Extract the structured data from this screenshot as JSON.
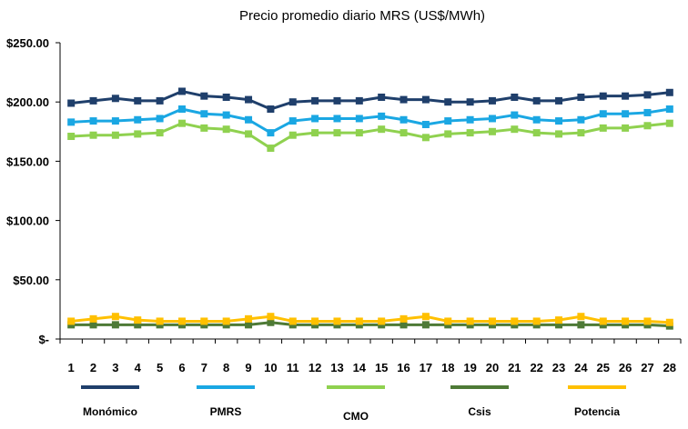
{
  "chart_data": {
    "type": "line",
    "title": "Precio promedio diario MRS (US$/MWh)",
    "xlabel": "",
    "ylabel": "",
    "x": [
      1,
      2,
      3,
      4,
      5,
      6,
      7,
      8,
      9,
      10,
      11,
      12,
      13,
      14,
      15,
      16,
      17,
      18,
      19,
      20,
      21,
      22,
      23,
      24,
      25,
      26,
      27,
      28
    ],
    "ylim": [
      0,
      250
    ],
    "yticks": [
      {
        "value": 0,
        "label": "$-"
      },
      {
        "value": 50,
        "label": "$50.00"
      },
      {
        "value": 100,
        "label": "$100.00"
      },
      {
        "value": 150,
        "label": "$150.00"
      },
      {
        "value": 200,
        "label": "$200.00"
      },
      {
        "value": 250,
        "label": "$250.00"
      }
    ],
    "grid": false,
    "legend_position": "bottom",
    "series": [
      {
        "name": "Monómico",
        "color": "#1F3F6B",
        "values": [
          199,
          201,
          203,
          201,
          201,
          209,
          205,
          204,
          202,
          194,
          200,
          201,
          201,
          201,
          204,
          202,
          202,
          200,
          200,
          201,
          204,
          201,
          201,
          204,
          205,
          205,
          206,
          208
        ]
      },
      {
        "name": "PMRS",
        "color": "#1AA7E3",
        "values": [
          183,
          184,
          184,
          185,
          186,
          194,
          190,
          189,
          185,
          174,
          184,
          186,
          186,
          186,
          188,
          185,
          181,
          184,
          185,
          186,
          189,
          185,
          184,
          185,
          190,
          190,
          191,
          194
        ]
      },
      {
        "name": "CMO",
        "color": "#8FD14F",
        "values": [
          171,
          172,
          172,
          173,
          174,
          182,
          178,
          177,
          173,
          161,
          172,
          174,
          174,
          174,
          177,
          174,
          170,
          173,
          174,
          175,
          177,
          174,
          173,
          174,
          178,
          178,
          180,
          182
        ]
      },
      {
        "name": "Csis",
        "color": "#4E7A36",
        "values": [
          12,
          12,
          12,
          12,
          12,
          12,
          12,
          12,
          12,
          14,
          12,
          12,
          12,
          12,
          12,
          12,
          12,
          12,
          12,
          12,
          12,
          12,
          12,
          12,
          12,
          12,
          12,
          11
        ]
      },
      {
        "name": "Potencia",
        "color": "#FFC000",
        "values": [
          15,
          17,
          19,
          16,
          15,
          15,
          15,
          15,
          17,
          19,
          15,
          15,
          15,
          15,
          15,
          17,
          19,
          15,
          15,
          15,
          15,
          15,
          16,
          19,
          15,
          15,
          15,
          14
        ]
      }
    ]
  }
}
